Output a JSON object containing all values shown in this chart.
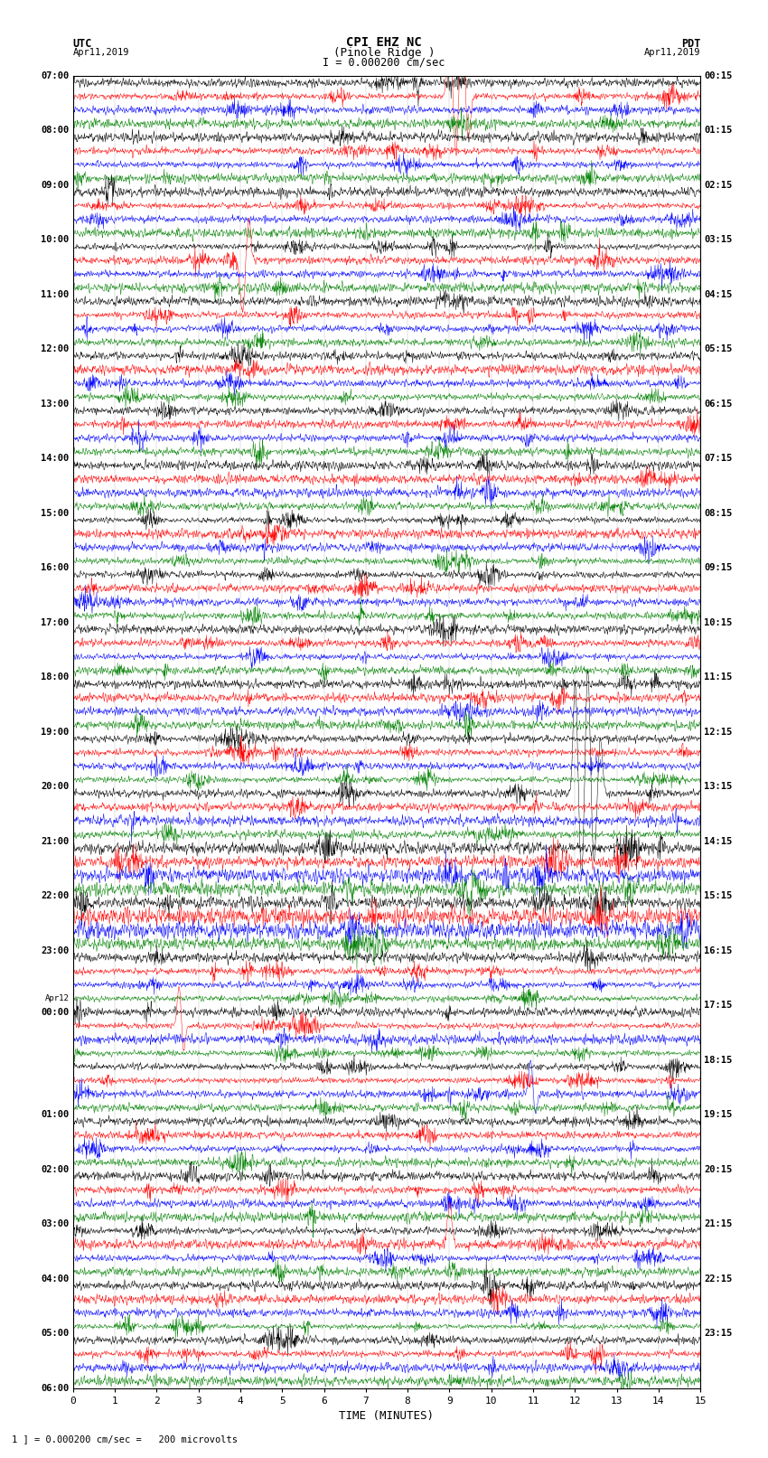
{
  "title_line1": "CPI EHZ NC",
  "title_line2": "(Pinole Ridge )",
  "scale_label": "I = 0.000200 cm/sec",
  "bottom_label": "1 ] = 0.000200 cm/sec =   200 microvolts",
  "xlabel": "TIME (MINUTES)",
  "left_times_utc": [
    "07:00",
    "08:00",
    "09:00",
    "10:00",
    "11:00",
    "12:00",
    "13:00",
    "14:00",
    "15:00",
    "16:00",
    "17:00",
    "18:00",
    "19:00",
    "20:00",
    "21:00",
    "22:00",
    "23:00",
    "Apr12",
    "00:00",
    "01:00",
    "02:00",
    "03:00",
    "04:00",
    "05:00",
    "06:00"
  ],
  "right_times_pdt": [
    "00:15",
    "01:15",
    "02:15",
    "03:15",
    "04:15",
    "05:15",
    "06:15",
    "07:15",
    "08:15",
    "09:15",
    "10:15",
    "11:15",
    "12:15",
    "13:15",
    "14:15",
    "15:15",
    "16:15",
    "17:15",
    "18:15",
    "19:15",
    "20:15",
    "21:15",
    "22:15",
    "23:15"
  ],
  "colors": [
    "black",
    "red",
    "blue",
    "green"
  ],
  "n_hours": 24,
  "traces_per_hour": 4,
  "samples_per_trace": 1800,
  "background_color": "white",
  "amplitude_scale": 0.42,
  "linewidth": 0.35
}
